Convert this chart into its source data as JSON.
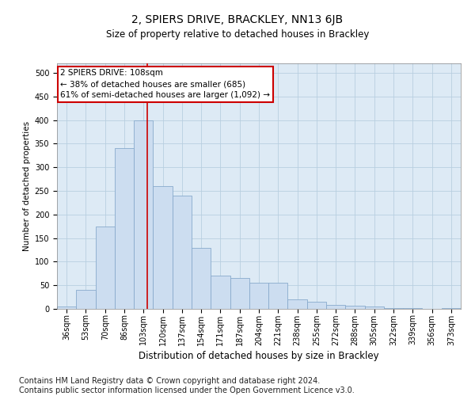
{
  "title": "2, SPIERS DRIVE, BRACKLEY, NN13 6JB",
  "subtitle": "Size of property relative to detached houses in Brackley",
  "xlabel": "Distribution of detached houses by size in Brackley",
  "ylabel": "Number of detached properties",
  "bar_color": "#ccddf0",
  "bar_edge_color": "#88aacc",
  "grid_color": "#b8cfe0",
  "background_color": "#ddeaf5",
  "annotation_box_color": "#ffffff",
  "annotation_border_color": "#cc0000",
  "property_line_color": "#cc0000",
  "annotation_text": "2 SPIERS DRIVE: 108sqm\n← 38% of detached houses are smaller (685)\n61% of semi-detached houses are larger (1,092) →",
  "property_size": 108,
  "categories": [
    "36sqm",
    "53sqm",
    "70sqm",
    "86sqm",
    "103sqm",
    "120sqm",
    "137sqm",
    "154sqm",
    "171sqm",
    "187sqm",
    "204sqm",
    "221sqm",
    "238sqm",
    "255sqm",
    "272sqm",
    "288sqm",
    "305sqm",
    "322sqm",
    "339sqm",
    "356sqm",
    "373sqm"
  ],
  "bin_starts": [
    28,
    45,
    62,
    79,
    96,
    113,
    130,
    147,
    164,
    181,
    198,
    215,
    232,
    249,
    266,
    283,
    300,
    317,
    334,
    351,
    368
  ],
  "bin_width": 17,
  "values": [
    5,
    40,
    175,
    340,
    400,
    260,
    240,
    130,
    70,
    65,
    55,
    55,
    20,
    15,
    8,
    7,
    5,
    2,
    1,
    0,
    2
  ],
  "ylim": [
    0,
    520
  ],
  "yticks": [
    0,
    50,
    100,
    150,
    200,
    250,
    300,
    350,
    400,
    450,
    500
  ],
  "footer": "Contains HM Land Registry data © Crown copyright and database right 2024.\nContains public sector information licensed under the Open Government Licence v3.0.",
  "footer_fontsize": 7,
  "title_fontsize": 10,
  "subtitle_fontsize": 8.5,
  "xlabel_fontsize": 8.5,
  "ylabel_fontsize": 7.5,
  "tick_fontsize": 7,
  "annotation_fontsize": 7.5
}
